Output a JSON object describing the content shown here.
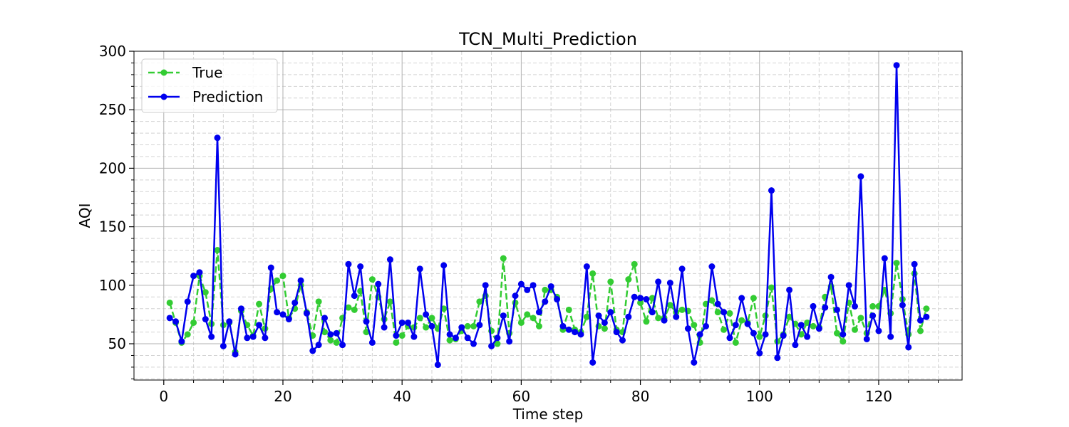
{
  "chart_data": {
    "type": "line",
    "title": "TCN_Multi_Prediction",
    "xlabel": "Time step",
    "ylabel": "AQI",
    "xlim": [
      -5,
      134
    ],
    "ylim": [
      19,
      300
    ],
    "xticks": [
      0,
      20,
      40,
      60,
      80,
      100,
      120
    ],
    "yticks": [
      50,
      100,
      150,
      200,
      250,
      300
    ],
    "grid": true,
    "legend_position": "top-left",
    "series": [
      {
        "name": "True",
        "color": "#33cc33",
        "line_style": "dashed",
        "values": [
          85,
          68,
          51,
          58,
          68,
          108,
          94,
          67,
          130,
          66,
          68,
          43,
          78,
          66,
          57,
          84,
          63,
          97,
          104,
          108,
          72,
          80,
          100,
          77,
          57,
          86,
          60,
          53,
          51,
          72,
          81,
          79,
          95,
          60,
          105,
          90,
          71,
          86,
          51,
          57,
          65,
          64,
          72,
          64,
          72,
          63,
          80,
          53,
          54,
          61,
          65,
          65,
          86,
          91,
          61,
          50,
          123,
          59,
          85,
          68,
          75,
          72,
          65,
          96,
          96,
          90,
          62,
          79,
          62,
          60,
          73,
          110,
          65,
          63,
          103,
          62,
          60,
          105,
          118,
          85,
          69,
          89,
          72,
          72,
          83,
          77,
          79,
          78,
          66,
          51,
          84,
          87,
          77,
          62,
          76,
          51,
          70,
          68,
          89,
          56,
          74,
          98,
          52,
          58,
          73,
          67,
          58,
          68,
          65,
          64,
          90,
          99,
          59,
          52,
          85,
          62,
          72,
          59,
          82,
          82,
          96,
          76,
          119,
          88,
          58,
          110,
          61,
          80
        ]
      },
      {
        "name": "Prediction",
        "color": "#0000ee",
        "line_style": "solid",
        "values": [
          72,
          69,
          52,
          86,
          108,
          111,
          71,
          56,
          226,
          48,
          69,
          41,
          80,
          55,
          56,
          66,
          55,
          115,
          77,
          75,
          71,
          85,
          104,
          76,
          44,
          49,
          72,
          58,
          59,
          49,
          118,
          91,
          116,
          69,
          51,
          101,
          64,
          122,
          57,
          68,
          68,
          56,
          114,
          75,
          65,
          32,
          117,
          58,
          55,
          64,
          55,
          50,
          66,
          100,
          48,
          55,
          74,
          52,
          91,
          101,
          96,
          100,
          77,
          86,
          99,
          88,
          65,
          62,
          60,
          58,
          116,
          34,
          74,
          68,
          77,
          60,
          53,
          73,
          90,
          89,
          88,
          77,
          103,
          70,
          102,
          73,
          114,
          63,
          34,
          58,
          65,
          116,
          84,
          77,
          55,
          66,
          89,
          67,
          59,
          42,
          58,
          181,
          38,
          57,
          96,
          49,
          66,
          56,
          82,
          63,
          81,
          107,
          79,
          58,
          100,
          82,
          193,
          54,
          74,
          61,
          123,
          56,
          288,
          83,
          47,
          118,
          70,
          73
        ]
      }
    ]
  }
}
